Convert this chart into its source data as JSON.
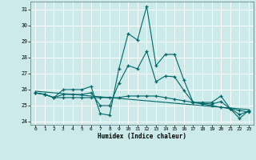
{
  "xlabel": "Humidex (Indice chaleur)",
  "bg_color": "#cceaea",
  "grid_color": "#ffffff",
  "line_color": "#006666",
  "xlim": [
    -0.5,
    23.5
  ],
  "ylim": [
    23.8,
    31.5
  ],
  "yticks": [
    24,
    25,
    26,
    27,
    28,
    29,
    30,
    31
  ],
  "xticks": [
    0,
    1,
    2,
    3,
    4,
    5,
    6,
    7,
    8,
    9,
    10,
    11,
    12,
    13,
    14,
    15,
    16,
    17,
    18,
    19,
    20,
    21,
    22,
    23
  ],
  "series": {
    "max": [
      25.8,
      25.7,
      25.5,
      26.0,
      26.0,
      26.0,
      26.2,
      24.5,
      24.4,
      27.3,
      29.5,
      29.1,
      31.2,
      27.5,
      28.2,
      28.2,
      26.6,
      25.2,
      25.2,
      25.2,
      25.6,
      24.8,
      24.2,
      24.7
    ],
    "min": [
      25.8,
      25.7,
      25.5,
      25.5,
      25.5,
      25.5,
      25.5,
      25.5,
      25.5,
      25.5,
      25.6,
      25.6,
      25.6,
      25.6,
      25.5,
      25.4,
      25.3,
      25.2,
      25.1,
      25.0,
      24.9,
      24.8,
      24.7,
      24.6
    ],
    "avg": [
      25.8,
      25.7,
      25.5,
      25.7,
      25.7,
      25.7,
      25.8,
      25.0,
      25.0,
      26.4,
      27.5,
      27.3,
      28.4,
      26.5,
      26.85,
      26.8,
      25.95,
      25.2,
      25.15,
      25.1,
      25.25,
      24.8,
      24.45,
      24.65
    ],
    "trend": [
      25.9,
      25.85,
      25.8,
      25.75,
      25.7,
      25.65,
      25.6,
      25.55,
      25.5,
      25.45,
      25.4,
      25.35,
      25.3,
      25.25,
      25.2,
      25.15,
      25.1,
      25.05,
      25.0,
      24.95,
      24.9,
      24.85,
      24.8,
      24.75
    ]
  }
}
